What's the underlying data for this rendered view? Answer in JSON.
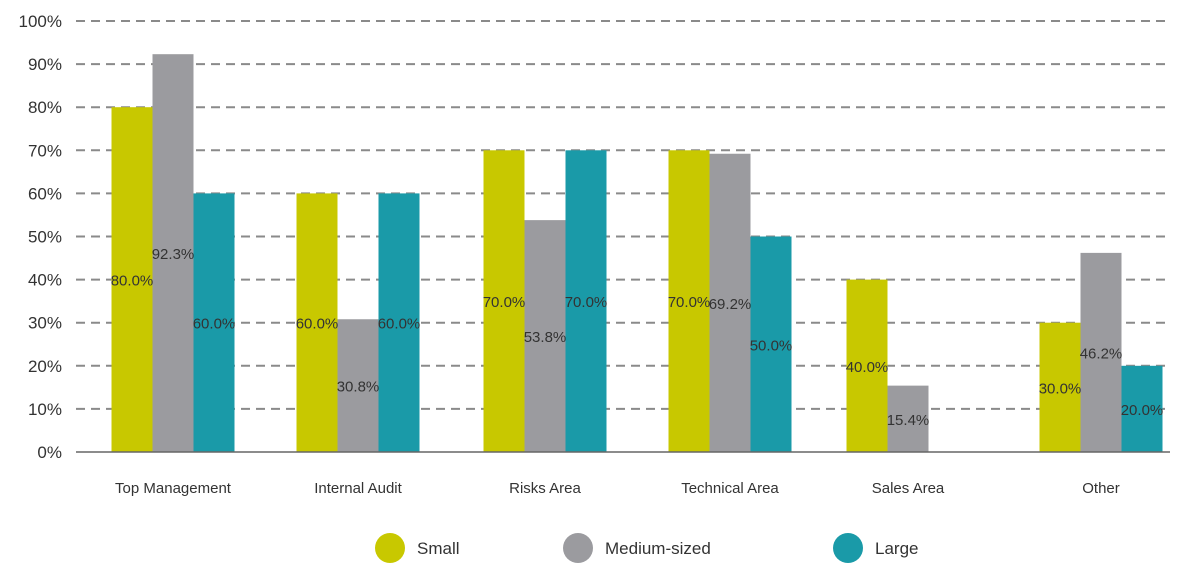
{
  "chart_data": {
    "type": "bar",
    "categories": [
      "Top Management",
      "Internal Audit",
      "Risks Area",
      "Technical Area",
      "Sales Area",
      "Other"
    ],
    "series": [
      {
        "name": "Small",
        "color": "#c8c800",
        "values": [
          80.0,
          60.0,
          70.0,
          70.0,
          40.0,
          30.0
        ],
        "labels": [
          "80.0%",
          "60.0%",
          "70.0%",
          "70.0%",
          "40.0%",
          "30.0%"
        ]
      },
      {
        "name": "Medium-sized",
        "color": "#9b9b9f",
        "values": [
          92.3,
          30.8,
          53.8,
          69.2,
          15.4,
          46.2
        ],
        "labels": [
          "92.3%",
          "30.8%",
          "53.8%",
          "69.2%",
          "15.4%",
          "46.2%"
        ]
      },
      {
        "name": "Large",
        "color": "#1a9aa8",
        "values": [
          60.0,
          60.0,
          70.0,
          50.0,
          0,
          20.0
        ],
        "labels": [
          "60.0%",
          "60.0%",
          "70.0%",
          "50.0%",
          "",
          "20.0%"
        ]
      }
    ],
    "ylim": [
      0,
      100
    ],
    "yticks": [
      "0%",
      "10%",
      "20%",
      "30%",
      "40%",
      "50%",
      "60%",
      "70%",
      "80%",
      "90%",
      "100%"
    ],
    "grid": true,
    "legend_position": "bottom-center"
  }
}
